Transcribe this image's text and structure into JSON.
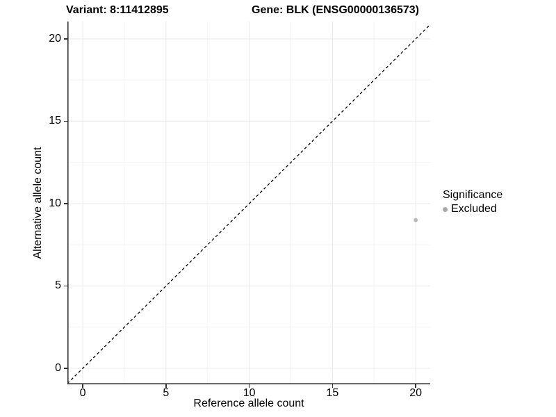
{
  "header": {
    "variant_title": "Variant: 8:11412895",
    "gene_title": "Gene: BLK (ENSG00000136573)"
  },
  "legend": {
    "title": "Significance",
    "items": [
      {
        "label": "Excluded",
        "color": "#a9a9a9"
      }
    ]
  },
  "colors": {
    "axis_line": "#333333",
    "major_grid": "#e9e9e9",
    "minor_grid": "#f4f4f4",
    "reference_line": "#000000",
    "point": "#b7b7b7"
  },
  "chart_data": {
    "type": "scatter",
    "title": "Variant: 8:11412895 | Gene: BLK (ENSG00000136573)",
    "xlabel": "Reference allele count",
    "ylabel": "Alternative allele count",
    "xlim": [
      -0.92,
      20.87
    ],
    "ylim": [
      -0.97,
      21.05
    ],
    "x_ticks": [
      0,
      5,
      10,
      15,
      20
    ],
    "y_ticks": [
      0,
      5,
      10,
      15,
      20
    ],
    "minor_x_ticks": [
      2.5,
      7.5,
      12.5,
      17.5
    ],
    "minor_y_ticks": [
      2.5,
      7.5,
      12.5,
      17.5
    ],
    "grid": true,
    "legend_position": "right",
    "reference_line": {
      "type": "y=x",
      "style": "dashed",
      "color": "#000000"
    },
    "series": [
      {
        "name": "Excluded",
        "color": "#b7b7b7",
        "points": [
          {
            "x": 20,
            "y": 9
          }
        ]
      }
    ]
  }
}
